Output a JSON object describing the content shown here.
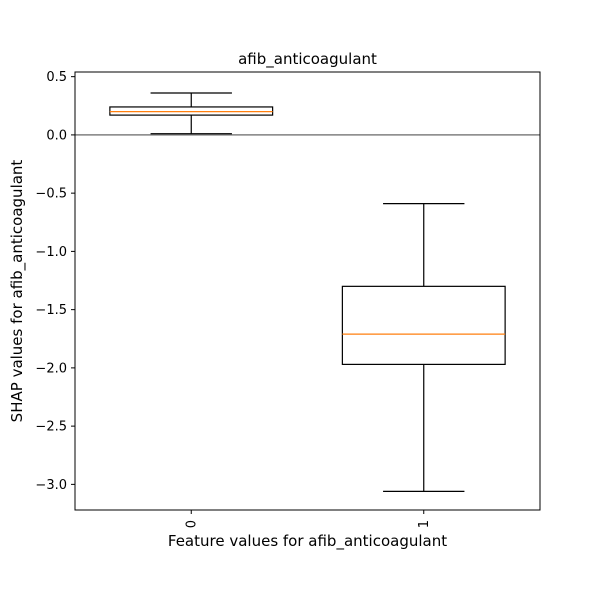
{
  "chart_data": {
    "type": "box",
    "title": "afib_anticoagulant",
    "xlabel": "Feature values for afib_anticoagulant",
    "ylabel": "SHAP values for afib_anticoagulant",
    "categories": [
      "0",
      "1"
    ],
    "ylim": [
      -3.22,
      0.54
    ],
    "yticks": [
      0.5,
      0.0,
      -0.5,
      -1.0,
      -1.5,
      -2.0,
      -2.5,
      -3.0
    ],
    "ytick_labels": [
      "0.5",
      "0.0",
      "−0.5",
      "−1.0",
      "−1.5",
      "−2.0",
      "−2.5",
      "−3.0"
    ],
    "boxes": [
      {
        "category": "0",
        "whisker_low": 0.01,
        "q1": 0.17,
        "median": 0.2,
        "q3": 0.24,
        "whisker_high": 0.36
      },
      {
        "category": "1",
        "whisker_low": -3.06,
        "q1": -1.97,
        "median": -1.71,
        "q3": -1.3,
        "whisker_high": -0.59
      }
    ],
    "reference_line_y": 0.0,
    "grid": false,
    "colors": {
      "box": "#000000",
      "median": "#ff7f0e",
      "reference": "#808080"
    }
  }
}
